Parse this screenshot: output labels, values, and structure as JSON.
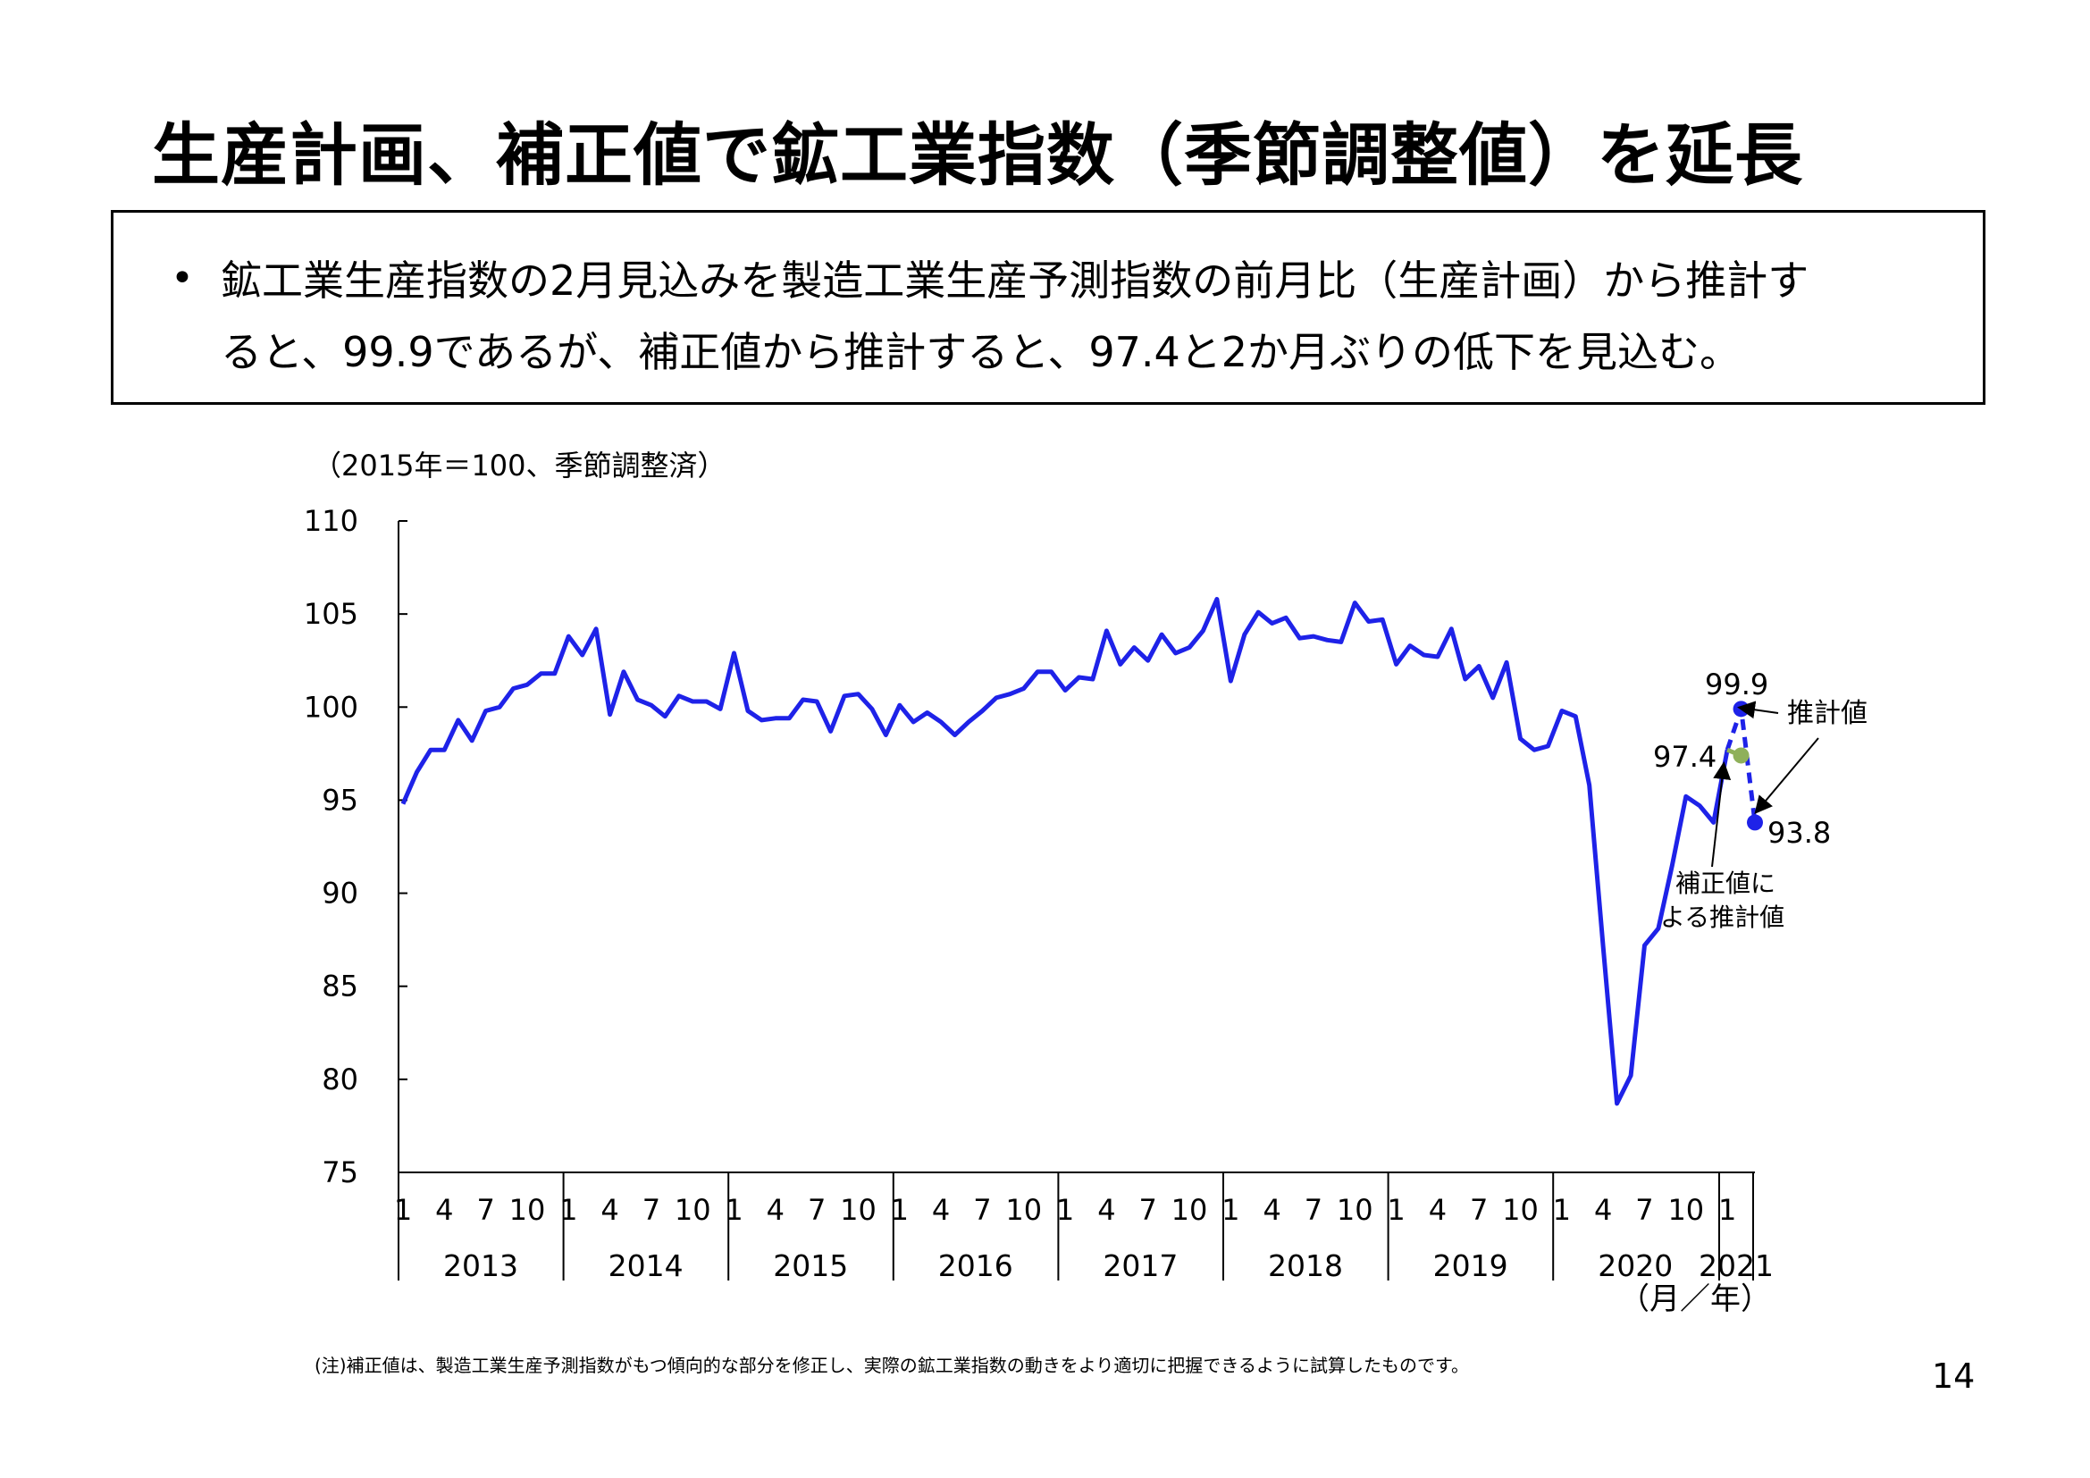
{
  "slide": {
    "title": "生産計画、補正値で鉱工業指数（季節調整値）を延長",
    "bullet_line1": "鉱工業生産指数の2月見込みを製造工業生産予測指数の前月比（生産計画）から推計す",
    "bullet_line2": "ると、99.9であるが、補正値から推計すると、97.4と2か月ぶりの低下を見込む。",
    "bullet_symbol": "•",
    "footnote": "(注)補正値は、製造工業生産予測指数がもつ傾向的な部分を修正し、実際の鉱工業指数の動きをより適切に把握できるように試算したものです。",
    "page_number": "14"
  },
  "chart_data": {
    "type": "line",
    "ylabel": "（2015年＝100、季節調整済）",
    "xlabel": "（月／年）",
    "ylim": [
      75,
      110
    ],
    "yticks": [
      75,
      80,
      85,
      90,
      95,
      100,
      105,
      110
    ],
    "month_tick_labels": [
      "1",
      "4",
      "7",
      "10"
    ],
    "years": [
      "2013",
      "2014",
      "2015",
      "2016",
      "2017",
      "2018",
      "2019",
      "2020",
      "2021"
    ],
    "series": [
      {
        "color": "#1e22e8",
        "start": "2013-01",
        "values": [
          94.8,
          96.5,
          97.7,
          97.7,
          99.3,
          98.2,
          99.8,
          100.0,
          101.0,
          101.2,
          101.8,
          101.8,
          103.8,
          102.8,
          104.2,
          99.6,
          101.9,
          100.4,
          100.1,
          99.5,
          100.6,
          100.3,
          100.3,
          99.9,
          102.9,
          99.8,
          99.3,
          99.4,
          99.4,
          100.4,
          100.3,
          98.7,
          100.6,
          100.7,
          99.9,
          98.5,
          100.1,
          99.2,
          99.7,
          99.2,
          98.5,
          99.2,
          99.8,
          100.5,
          100.7,
          101.0,
          101.9,
          101.9,
          100.9,
          101.6,
          101.5,
          104.1,
          102.3,
          103.2,
          102.5,
          103.9,
          102.9,
          103.2,
          104.1,
          105.8,
          101.4,
          103.9,
          105.1,
          104.5,
          104.8,
          103.7,
          103.8,
          103.6,
          103.5,
          105.6,
          104.6,
          104.7,
          102.3,
          103.3,
          102.8,
          102.7,
          104.2,
          101.5,
          102.2,
          100.5,
          102.4,
          98.3,
          97.7,
          97.9,
          99.8,
          99.5,
          95.8,
          87.1,
          78.7,
          80.2,
          87.2,
          88.1,
          91.5,
          95.2,
          94.7,
          93.8,
          97.7
        ]
      }
    ],
    "projections": [
      {
        "name": "推計値",
        "label": "99.9",
        "color": "#1e22e8",
        "points": [
          {
            "x": "2021-01",
            "y": 97.7
          },
          {
            "x": "2021-02",
            "y": 99.9
          },
          {
            "x": "2021-03",
            "y": 93.8
          }
        ]
      },
      {
        "name": "補正値による推計値",
        "label": "97.4",
        "color": "#8fb05a",
        "points": [
          {
            "x": "2021-01",
            "y": 97.7
          },
          {
            "x": "2021-02",
            "y": 97.4
          }
        ]
      }
    ],
    "annotations": {
      "label_999": "99.9",
      "label_974": "97.4",
      "label_938": "93.8",
      "callout_estimate": "推計値",
      "callout_corrected_line1": "補正値に",
      "callout_corrected_line2": "よる推計値"
    }
  }
}
